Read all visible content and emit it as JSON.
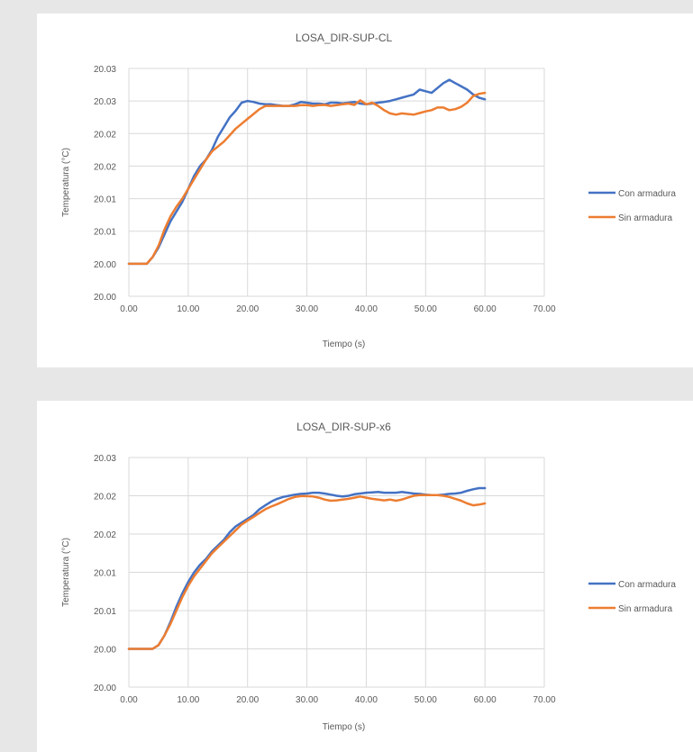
{
  "colors": {
    "con": "#4472c4",
    "sin": "#ed7d31",
    "grid": "#d9d9d9",
    "text": "#595959"
  },
  "chart_data": [
    {
      "type": "line",
      "title": "LOSA_DIR-SUP-CL",
      "xlabel": "Tiempo (s)",
      "ylabel": "Temperatura (°C)",
      "xlim": [
        0,
        70
      ],
      "x_tick_values": [
        0,
        10,
        20,
        30,
        40,
        50,
        60,
        70
      ],
      "x_tick_labels": [
        "0.00",
        "10.00",
        "20.00",
        "30.00",
        "40.00",
        "50.00",
        "60.00",
        "70.00"
      ],
      "y_tick_labels": [
        "20.00",
        "20.00",
        "20.01",
        "20.01",
        "20.02",
        "20.02",
        "20.03",
        "20.03"
      ],
      "ylim": [
        0,
        7
      ],
      "grid": true,
      "legend_position": "right",
      "series": [
        {
          "name": "Con armadura",
          "color": "#4472c4",
          "points": [
            [
              0,
              1
            ],
            [
              3,
              1
            ],
            [
              4,
              1.2
            ],
            [
              5,
              1.5
            ],
            [
              6,
              1.9
            ],
            [
              7,
              2.3
            ],
            [
              8,
              2.6
            ],
            [
              9,
              2.9
            ],
            [
              10,
              3.3
            ],
            [
              11,
              3.7
            ],
            [
              12,
              4.0
            ],
            [
              13,
              4.2
            ],
            [
              14,
              4.5
            ],
            [
              15,
              4.9
            ],
            [
              16,
              5.2
            ],
            [
              17,
              5.5
            ],
            [
              18,
              5.7
            ],
            [
              19,
              5.95
            ],
            [
              20,
              6.0
            ],
            [
              21,
              5.97
            ],
            [
              22,
              5.92
            ],
            [
              23,
              5.9
            ],
            [
              24,
              5.9
            ],
            [
              25,
              5.87
            ],
            [
              26,
              5.85
            ],
            [
              27,
              5.85
            ],
            [
              28,
              5.9
            ],
            [
              29,
              5.97
            ],
            [
              30,
              5.95
            ],
            [
              31,
              5.92
            ],
            [
              32,
              5.92
            ],
            [
              33,
              5.9
            ],
            [
              34,
              5.95
            ],
            [
              35,
              5.95
            ],
            [
              36,
              5.93
            ],
            [
              37,
              5.95
            ],
            [
              38,
              5.97
            ],
            [
              39,
              5.92
            ],
            [
              40,
              5.9
            ],
            [
              41,
              5.92
            ],
            [
              42,
              5.95
            ],
            [
              43,
              5.97
            ],
            [
              44,
              6.0
            ],
            [
              45,
              6.05
            ],
            [
              46,
              6.1
            ],
            [
              47,
              6.15
            ],
            [
              48,
              6.2
            ],
            [
              49,
              6.35
            ],
            [
              50,
              6.3
            ],
            [
              51,
              6.25
            ],
            [
              52,
              6.4
            ],
            [
              53,
              6.55
            ],
            [
              54,
              6.65
            ],
            [
              55,
              6.55
            ],
            [
              56,
              6.45
            ],
            [
              57,
              6.35
            ],
            [
              58,
              6.2
            ],
            [
              59,
              6.1
            ],
            [
              60,
              6.05
            ]
          ]
        },
        {
          "name": "Sin armadura",
          "color": "#ed7d31",
          "points": [
            [
              0,
              1
            ],
            [
              3,
              1
            ],
            [
              4,
              1.2
            ],
            [
              5,
              1.55
            ],
            [
              6,
              2.05
            ],
            [
              7,
              2.45
            ],
            [
              8,
              2.75
            ],
            [
              9,
              3.0
            ],
            [
              10,
              3.3
            ],
            [
              11,
              3.6
            ],
            [
              12,
              3.9
            ],
            [
              13,
              4.2
            ],
            [
              14,
              4.45
            ],
            [
              15,
              4.6
            ],
            [
              16,
              4.75
            ],
            [
              17,
              4.95
            ],
            [
              18,
              5.15
            ],
            [
              19,
              5.3
            ],
            [
              20,
              5.45
            ],
            [
              21,
              5.6
            ],
            [
              22,
              5.75
            ],
            [
              23,
              5.85
            ],
            [
              24,
              5.85
            ],
            [
              25,
              5.85
            ],
            [
              26,
              5.85
            ],
            [
              27,
              5.85
            ],
            [
              28,
              5.85
            ],
            [
              29,
              5.87
            ],
            [
              30,
              5.87
            ],
            [
              31,
              5.85
            ],
            [
              32,
              5.87
            ],
            [
              33,
              5.88
            ],
            [
              34,
              5.85
            ],
            [
              35,
              5.87
            ],
            [
              36,
              5.9
            ],
            [
              37,
              5.92
            ],
            [
              38,
              5.88
            ],
            [
              39,
              6.02
            ],
            [
              40,
              5.9
            ],
            [
              41,
              5.95
            ],
            [
              42,
              5.85
            ],
            [
              43,
              5.72
            ],
            [
              44,
              5.62
            ],
            [
              45,
              5.58
            ],
            [
              46,
              5.62
            ],
            [
              47,
              5.6
            ],
            [
              48,
              5.58
            ],
            [
              49,
              5.63
            ],
            [
              50,
              5.68
            ],
            [
              51,
              5.72
            ],
            [
              52,
              5.8
            ],
            [
              53,
              5.8
            ],
            [
              54,
              5.72
            ],
            [
              55,
              5.75
            ],
            [
              56,
              5.82
            ],
            [
              57,
              5.95
            ],
            [
              58,
              6.15
            ],
            [
              59,
              6.22
            ],
            [
              60,
              6.25
            ]
          ]
        }
      ]
    },
    {
      "type": "line",
      "title": "LOSA_DIR-SUP-x6",
      "xlabel": "Tiempo (s)",
      "ylabel": "Temperatura (°C)",
      "xlim": [
        0,
        70
      ],
      "x_tick_values": [
        0,
        10,
        20,
        30,
        40,
        50,
        60,
        70
      ],
      "x_tick_labels": [
        "0.00",
        "10.00",
        "20.00",
        "30.00",
        "40.00",
        "50.00",
        "60.00",
        "70.00"
      ],
      "y_tick_labels": [
        "20.00",
        "20.00",
        "20.01",
        "20.01",
        "20.02",
        "20.02",
        "20.03"
      ],
      "ylim": [
        0,
        6
      ],
      "grid": true,
      "legend_position": "right",
      "series": [
        {
          "name": "Con armadura",
          "color": "#4472c4",
          "points": [
            [
              0,
              1
            ],
            [
              4,
              1
            ],
            [
              5,
              1.1
            ],
            [
              6,
              1.35
            ],
            [
              7,
              1.7
            ],
            [
              8,
              2.1
            ],
            [
              9,
              2.45
            ],
            [
              10,
              2.75
            ],
            [
              11,
              3.0
            ],
            [
              12,
              3.2
            ],
            [
              13,
              3.35
            ],
            [
              14,
              3.55
            ],
            [
              15,
              3.7
            ],
            [
              16,
              3.85
            ],
            [
              17,
              4.05
            ],
            [
              18,
              4.2
            ],
            [
              19,
              4.3
            ],
            [
              20,
              4.4
            ],
            [
              21,
              4.5
            ],
            [
              22,
              4.65
            ],
            [
              23,
              4.75
            ],
            [
              24,
              4.85
            ],
            [
              25,
              4.92
            ],
            [
              26,
              4.97
            ],
            [
              27,
              5.0
            ],
            [
              28,
              5.03
            ],
            [
              29,
              5.05
            ],
            [
              30,
              5.06
            ],
            [
              31,
              5.08
            ],
            [
              32,
              5.08
            ],
            [
              33,
              5.06
            ],
            [
              34,
              5.03
            ],
            [
              35,
              5.0
            ],
            [
              36,
              4.98
            ],
            [
              37,
              5.0
            ],
            [
              38,
              5.04
            ],
            [
              39,
              5.06
            ],
            [
              40,
              5.08
            ],
            [
              41,
              5.09
            ],
            [
              42,
              5.1
            ],
            [
              43,
              5.08
            ],
            [
              44,
              5.08
            ],
            [
              45,
              5.08
            ],
            [
              46,
              5.1
            ],
            [
              47,
              5.08
            ],
            [
              48,
              5.06
            ],
            [
              49,
              5.05
            ],
            [
              50,
              5.03
            ],
            [
              51,
              5.02
            ],
            [
              52,
              5.02
            ],
            [
              53,
              5.03
            ],
            [
              54,
              5.05
            ],
            [
              55,
              5.06
            ],
            [
              56,
              5.08
            ],
            [
              57,
              5.13
            ],
            [
              58,
              5.17
            ],
            [
              59,
              5.2
            ],
            [
              60,
              5.2
            ]
          ]
        },
        {
          "name": "Sin armadura",
          "color": "#ed7d31",
          "points": [
            [
              0,
              1
            ],
            [
              4,
              1
            ],
            [
              5,
              1.1
            ],
            [
              6,
              1.35
            ],
            [
              7,
              1.65
            ],
            [
              8,
              2.0
            ],
            [
              9,
              2.35
            ],
            [
              10,
              2.65
            ],
            [
              11,
              2.9
            ],
            [
              12,
              3.1
            ],
            [
              13,
              3.3
            ],
            [
              14,
              3.5
            ],
            [
              15,
              3.65
            ],
            [
              16,
              3.8
            ],
            [
              17,
              3.95
            ],
            [
              18,
              4.1
            ],
            [
              19,
              4.25
            ],
            [
              20,
              4.35
            ],
            [
              21,
              4.45
            ],
            [
              22,
              4.55
            ],
            [
              23,
              4.65
            ],
            [
              24,
              4.72
            ],
            [
              25,
              4.78
            ],
            [
              26,
              4.85
            ],
            [
              27,
              4.92
            ],
            [
              28,
              4.97
            ],
            [
              29,
              4.99
            ],
            [
              30,
              4.99
            ],
            [
              31,
              4.98
            ],
            [
              32,
              4.95
            ],
            [
              33,
              4.9
            ],
            [
              34,
              4.87
            ],
            [
              35,
              4.88
            ],
            [
              36,
              4.9
            ],
            [
              37,
              4.92
            ],
            [
              38,
              4.95
            ],
            [
              39,
              4.98
            ],
            [
              40,
              4.95
            ],
            [
              41,
              4.92
            ],
            [
              42,
              4.9
            ],
            [
              43,
              4.88
            ],
            [
              44,
              4.9
            ],
            [
              45,
              4.87
            ],
            [
              46,
              4.9
            ],
            [
              47,
              4.95
            ],
            [
              48,
              5.0
            ],
            [
              49,
              5.02
            ],
            [
              50,
              5.02
            ],
            [
              51,
              5.02
            ],
            [
              52,
              5.02
            ],
            [
              53,
              5.0
            ],
            [
              54,
              4.97
            ],
            [
              55,
              4.92
            ],
            [
              56,
              4.87
            ],
            [
              57,
              4.8
            ],
            [
              58,
              4.75
            ],
            [
              59,
              4.77
            ],
            [
              60,
              4.8
            ]
          ]
        }
      ]
    }
  ]
}
